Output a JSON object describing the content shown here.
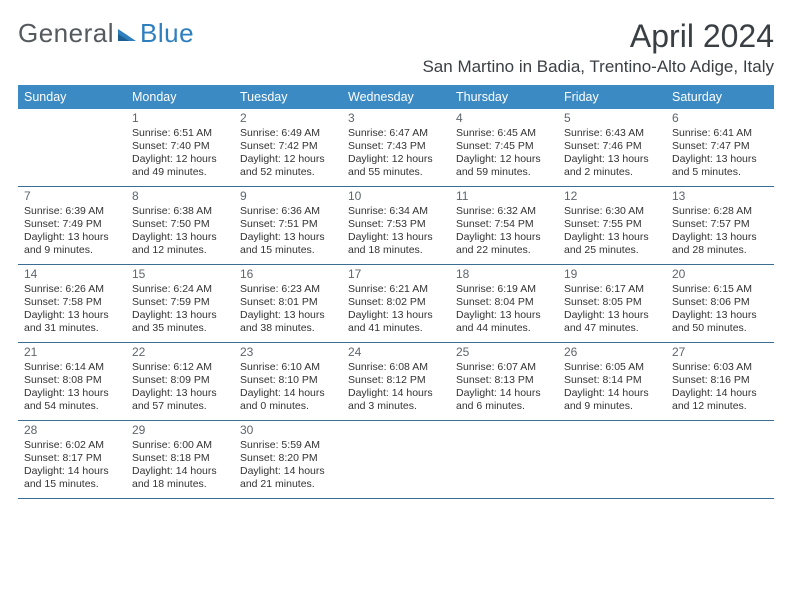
{
  "brand": {
    "general": "General",
    "blue": "Blue"
  },
  "title": "April 2024",
  "location": "San Martino in Badia, Trentino-Alto Adige, Italy",
  "colors": {
    "header_bg": "#3b8ac4",
    "header_text": "#ffffff",
    "rule": "#3b6d93",
    "logo_general": "#555a5e",
    "logo_blue": "#2f7fbf",
    "title_color": "#3a3f44",
    "body_text": "#333333",
    "daynum": "#5e666c",
    "page_bg": "#ffffff"
  },
  "fonts": {
    "title_size_pt": 24,
    "location_size_pt": 13,
    "header_cell_pt": 9.5,
    "daynum_pt": 9,
    "body_pt": 8
  },
  "weekdays": [
    "Sunday",
    "Monday",
    "Tuesday",
    "Wednesday",
    "Thursday",
    "Friday",
    "Saturday"
  ],
  "weeks": [
    [
      null,
      {
        "d": "1",
        "sr": "Sunrise: 6:51 AM",
        "ss": "Sunset: 7:40 PM",
        "dl1": "Daylight: 12 hours",
        "dl2": "and 49 minutes."
      },
      {
        "d": "2",
        "sr": "Sunrise: 6:49 AM",
        "ss": "Sunset: 7:42 PM",
        "dl1": "Daylight: 12 hours",
        "dl2": "and 52 minutes."
      },
      {
        "d": "3",
        "sr": "Sunrise: 6:47 AM",
        "ss": "Sunset: 7:43 PM",
        "dl1": "Daylight: 12 hours",
        "dl2": "and 55 minutes."
      },
      {
        "d": "4",
        "sr": "Sunrise: 6:45 AM",
        "ss": "Sunset: 7:45 PM",
        "dl1": "Daylight: 12 hours",
        "dl2": "and 59 minutes."
      },
      {
        "d": "5",
        "sr": "Sunrise: 6:43 AM",
        "ss": "Sunset: 7:46 PM",
        "dl1": "Daylight: 13 hours",
        "dl2": "and 2 minutes."
      },
      {
        "d": "6",
        "sr": "Sunrise: 6:41 AM",
        "ss": "Sunset: 7:47 PM",
        "dl1": "Daylight: 13 hours",
        "dl2": "and 5 minutes."
      }
    ],
    [
      {
        "d": "7",
        "sr": "Sunrise: 6:39 AM",
        "ss": "Sunset: 7:49 PM",
        "dl1": "Daylight: 13 hours",
        "dl2": "and 9 minutes."
      },
      {
        "d": "8",
        "sr": "Sunrise: 6:38 AM",
        "ss": "Sunset: 7:50 PM",
        "dl1": "Daylight: 13 hours",
        "dl2": "and 12 minutes."
      },
      {
        "d": "9",
        "sr": "Sunrise: 6:36 AM",
        "ss": "Sunset: 7:51 PM",
        "dl1": "Daylight: 13 hours",
        "dl2": "and 15 minutes."
      },
      {
        "d": "10",
        "sr": "Sunrise: 6:34 AM",
        "ss": "Sunset: 7:53 PM",
        "dl1": "Daylight: 13 hours",
        "dl2": "and 18 minutes."
      },
      {
        "d": "11",
        "sr": "Sunrise: 6:32 AM",
        "ss": "Sunset: 7:54 PM",
        "dl1": "Daylight: 13 hours",
        "dl2": "and 22 minutes."
      },
      {
        "d": "12",
        "sr": "Sunrise: 6:30 AM",
        "ss": "Sunset: 7:55 PM",
        "dl1": "Daylight: 13 hours",
        "dl2": "and 25 minutes."
      },
      {
        "d": "13",
        "sr": "Sunrise: 6:28 AM",
        "ss": "Sunset: 7:57 PM",
        "dl1": "Daylight: 13 hours",
        "dl2": "and 28 minutes."
      }
    ],
    [
      {
        "d": "14",
        "sr": "Sunrise: 6:26 AM",
        "ss": "Sunset: 7:58 PM",
        "dl1": "Daylight: 13 hours",
        "dl2": "and 31 minutes."
      },
      {
        "d": "15",
        "sr": "Sunrise: 6:24 AM",
        "ss": "Sunset: 7:59 PM",
        "dl1": "Daylight: 13 hours",
        "dl2": "and 35 minutes."
      },
      {
        "d": "16",
        "sr": "Sunrise: 6:23 AM",
        "ss": "Sunset: 8:01 PM",
        "dl1": "Daylight: 13 hours",
        "dl2": "and 38 minutes."
      },
      {
        "d": "17",
        "sr": "Sunrise: 6:21 AM",
        "ss": "Sunset: 8:02 PM",
        "dl1": "Daylight: 13 hours",
        "dl2": "and 41 minutes."
      },
      {
        "d": "18",
        "sr": "Sunrise: 6:19 AM",
        "ss": "Sunset: 8:04 PM",
        "dl1": "Daylight: 13 hours",
        "dl2": "and 44 minutes."
      },
      {
        "d": "19",
        "sr": "Sunrise: 6:17 AM",
        "ss": "Sunset: 8:05 PM",
        "dl1": "Daylight: 13 hours",
        "dl2": "and 47 minutes."
      },
      {
        "d": "20",
        "sr": "Sunrise: 6:15 AM",
        "ss": "Sunset: 8:06 PM",
        "dl1": "Daylight: 13 hours",
        "dl2": "and 50 minutes."
      }
    ],
    [
      {
        "d": "21",
        "sr": "Sunrise: 6:14 AM",
        "ss": "Sunset: 8:08 PM",
        "dl1": "Daylight: 13 hours",
        "dl2": "and 54 minutes."
      },
      {
        "d": "22",
        "sr": "Sunrise: 6:12 AM",
        "ss": "Sunset: 8:09 PM",
        "dl1": "Daylight: 13 hours",
        "dl2": "and 57 minutes."
      },
      {
        "d": "23",
        "sr": "Sunrise: 6:10 AM",
        "ss": "Sunset: 8:10 PM",
        "dl1": "Daylight: 14 hours",
        "dl2": "and 0 minutes."
      },
      {
        "d": "24",
        "sr": "Sunrise: 6:08 AM",
        "ss": "Sunset: 8:12 PM",
        "dl1": "Daylight: 14 hours",
        "dl2": "and 3 minutes."
      },
      {
        "d": "25",
        "sr": "Sunrise: 6:07 AM",
        "ss": "Sunset: 8:13 PM",
        "dl1": "Daylight: 14 hours",
        "dl2": "and 6 minutes."
      },
      {
        "d": "26",
        "sr": "Sunrise: 6:05 AM",
        "ss": "Sunset: 8:14 PM",
        "dl1": "Daylight: 14 hours",
        "dl2": "and 9 minutes."
      },
      {
        "d": "27",
        "sr": "Sunrise: 6:03 AM",
        "ss": "Sunset: 8:16 PM",
        "dl1": "Daylight: 14 hours",
        "dl2": "and 12 minutes."
      }
    ],
    [
      {
        "d": "28",
        "sr": "Sunrise: 6:02 AM",
        "ss": "Sunset: 8:17 PM",
        "dl1": "Daylight: 14 hours",
        "dl2": "and 15 minutes."
      },
      {
        "d": "29",
        "sr": "Sunrise: 6:00 AM",
        "ss": "Sunset: 8:18 PM",
        "dl1": "Daylight: 14 hours",
        "dl2": "and 18 minutes."
      },
      {
        "d": "30",
        "sr": "Sunrise: 5:59 AM",
        "ss": "Sunset: 8:20 PM",
        "dl1": "Daylight: 14 hours",
        "dl2": "and 21 minutes."
      },
      null,
      null,
      null,
      null
    ]
  ]
}
